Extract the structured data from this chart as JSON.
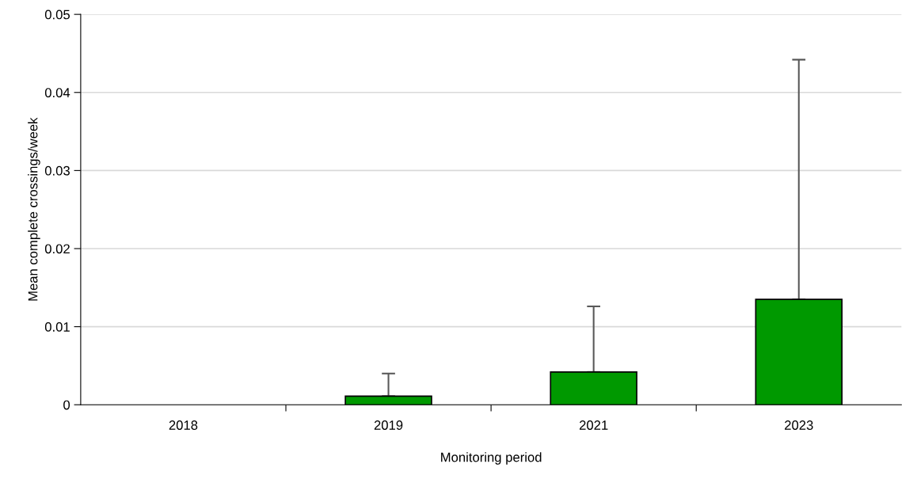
{
  "chart_data": {
    "type": "bar",
    "xlabel": "Monitoring period",
    "ylabel": "Mean complete crossings/week",
    "categories": [
      "2018",
      "2019",
      "2021",
      "2023"
    ],
    "values": [
      0,
      0.0011,
      0.0042,
      0.0135
    ],
    "errors": [
      null,
      [
        0.0011,
        0.004
      ],
      [
        0.0042,
        0.0126
      ],
      [
        0.0135,
        0.0442
      ]
    ],
    "color": "#009900",
    "ylim": [
      0,
      0.05
    ],
    "yticks": [
      {
        "value": 0,
        "label": "0"
      },
      0.01,
      0.02,
      0.03,
      0.04,
      0.05
    ],
    "grid": "y"
  }
}
